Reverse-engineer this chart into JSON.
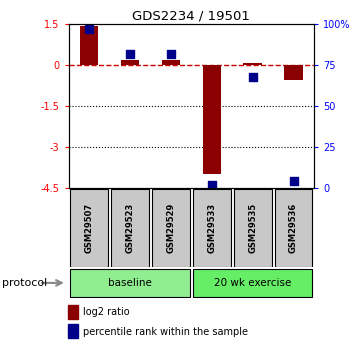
{
  "title": "GDS2234 / 19501",
  "samples": [
    "GSM29507",
    "GSM29523",
    "GSM29529",
    "GSM29533",
    "GSM29535",
    "GSM29536"
  ],
  "log2_ratio": [
    1.45,
    0.18,
    0.2,
    -4.0,
    0.07,
    -0.55
  ],
  "percentile_rank": [
    97,
    82,
    82,
    2,
    68,
    4
  ],
  "ylim_left": [
    -4.5,
    1.5
  ],
  "ylim_right": [
    0,
    100
  ],
  "yticks_left": [
    1.5,
    0,
    -1.5,
    -3,
    -4.5
  ],
  "yticks_right": [
    100,
    75,
    50,
    25,
    0
  ],
  "ytick_labels_left": [
    "1.5",
    "0",
    "-1.5",
    "-3",
    "-4.5"
  ],
  "ytick_labels_right": [
    "100%",
    "75",
    "50",
    "25",
    "0"
  ],
  "bar_color": "#8B0000",
  "dot_color": "#00008B",
  "bar_width": 0.45,
  "dot_size": 40,
  "hline_0_color": "#CC0000",
  "hline_dotted_color": "black",
  "protocol_label": "protocol",
  "legend_bar_label": "log2 ratio",
  "legend_dot_label": "percentile rank within the sample",
  "sample_box_color": "#C8C8C8",
  "group_ranges": [
    [
      0,
      2
    ],
    [
      3,
      5
    ]
  ],
  "group_labels": [
    "baseline",
    "20 wk exercise"
  ],
  "group_facecolors": [
    "#90EE90",
    "#66EE66"
  ]
}
